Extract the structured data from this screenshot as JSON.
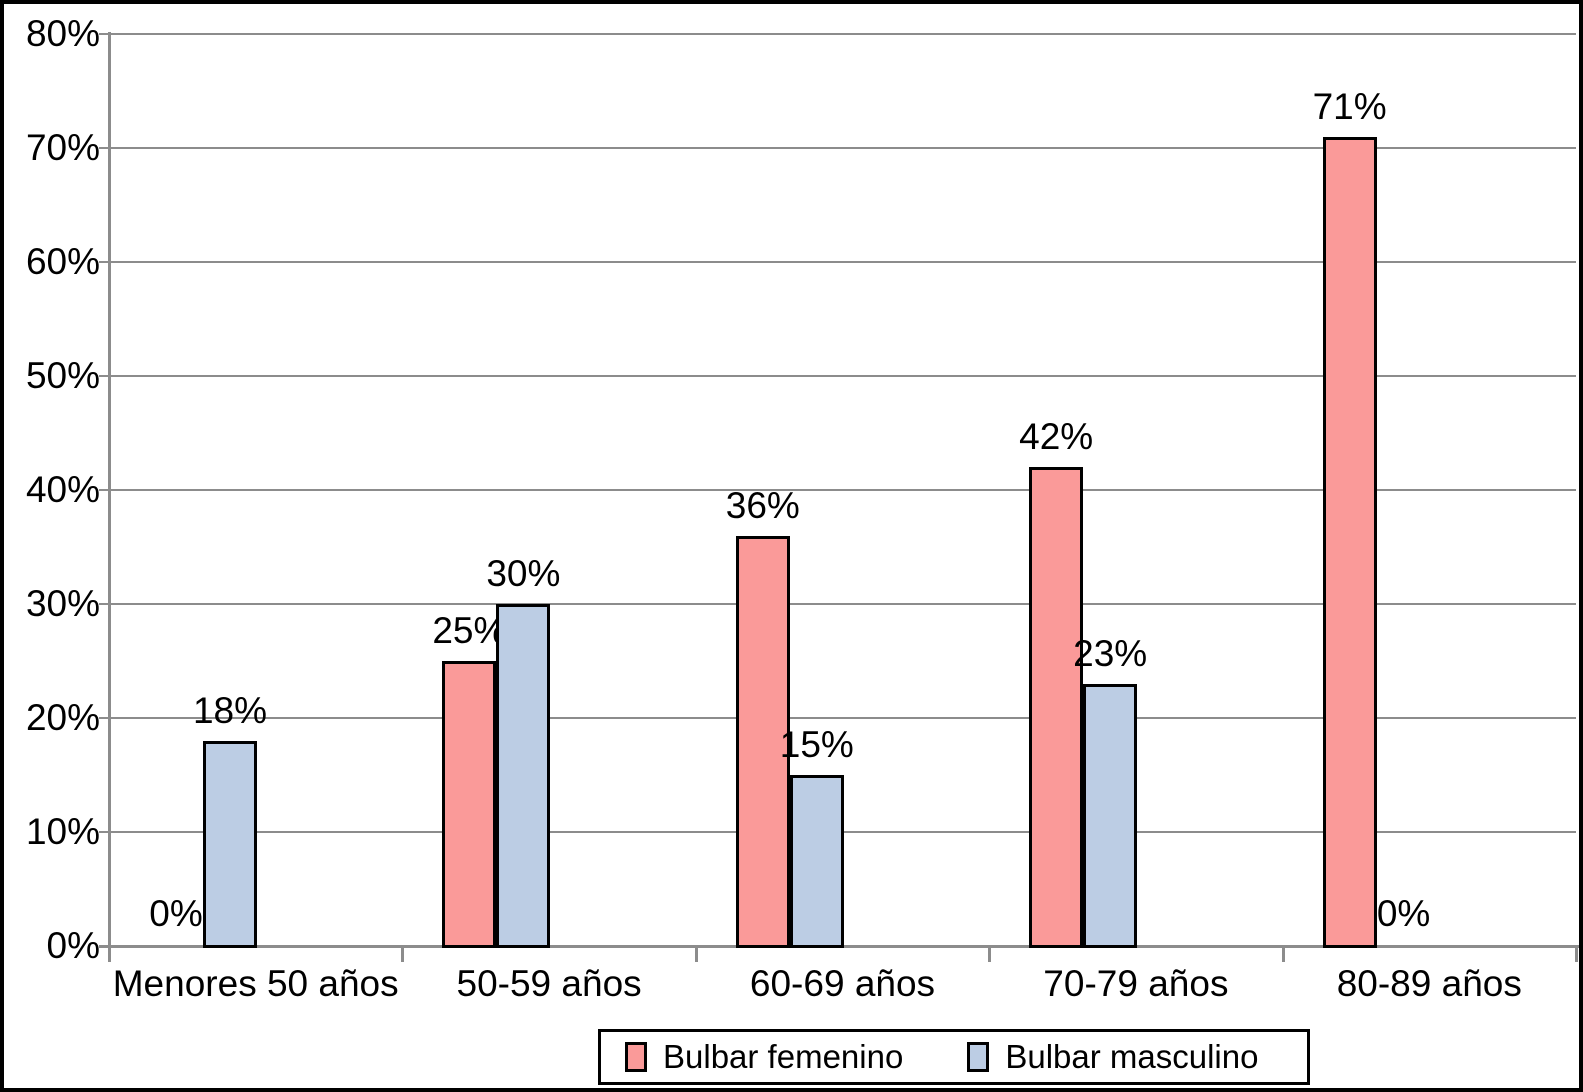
{
  "chart_data": {
    "type": "bar",
    "title": "",
    "xlabel": "",
    "ylabel": "",
    "categories": [
      "Menores 50 años",
      "50-59 años",
      "60-69 años",
      "70-79 años",
      "80-89 años"
    ],
    "series": [
      {
        "name": "Bulbar femenino",
        "color": "#FA9A99",
        "values": [
          0,
          25,
          36,
          42,
          71
        ],
        "data_labels": [
          "0%",
          "25%",
          "36%",
          "42%",
          "71%"
        ]
      },
      {
        "name": "Bulbar masculino",
        "color": "#BCCDE4",
        "values": [
          18,
          30,
          15,
          23,
          0
        ],
        "data_labels": [
          "18%",
          "30%",
          "15%",
          "23%",
          "0%"
        ]
      }
    ],
    "ylim": [
      0,
      80
    ],
    "ytick_step": 10,
    "ytick_labels": [
      "0%",
      "10%",
      "20%",
      "30%",
      "40%",
      "50%",
      "60%",
      "70%",
      "80%"
    ],
    "grid": true,
    "legend_position": "bottom",
    "colors": {
      "gridline": "#8C8C8C",
      "axis": "#8C8C8C",
      "bar_border": "#000000",
      "text": "#000000",
      "background": "#FFFFFF",
      "frame_border": "#000000"
    }
  }
}
